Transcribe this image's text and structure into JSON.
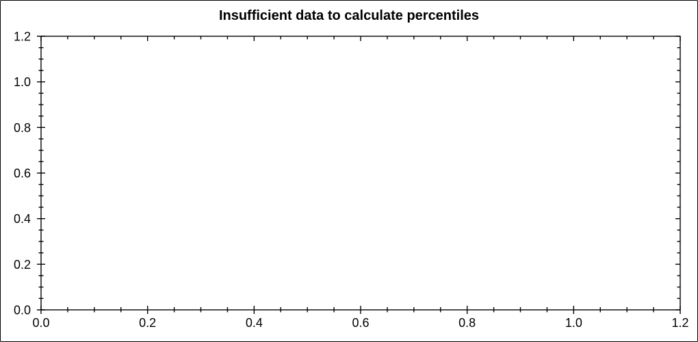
{
  "figure": {
    "background": "#ffffff",
    "border_color": "#000000"
  },
  "chart_data": {
    "type": "scatter",
    "title": "Insufficient data to calculate percentiles",
    "series": [],
    "xlabel": "",
    "ylabel": "",
    "xlim": [
      0.0,
      1.2
    ],
    "ylim": [
      0.0,
      1.2
    ],
    "x_major_ticks": [
      0.0,
      0.2,
      0.4,
      0.6,
      0.8,
      1.0,
      1.2
    ],
    "y_major_ticks": [
      0.0,
      0.2,
      0.4,
      0.6,
      0.8,
      1.0,
      1.2
    ],
    "x_tick_labels": [
      "0.0",
      "0.2",
      "0.4",
      "0.6",
      "0.8",
      "1.0",
      "1.2"
    ],
    "y_tick_labels": [
      "0.0",
      "0.2",
      "0.4",
      "0.6",
      "0.8",
      "1.0",
      "1.2"
    ],
    "minor_tick_interval": 0.05,
    "grid": false,
    "legend": false,
    "box": true,
    "axis_color": "#000000",
    "text_color": "#000000"
  }
}
